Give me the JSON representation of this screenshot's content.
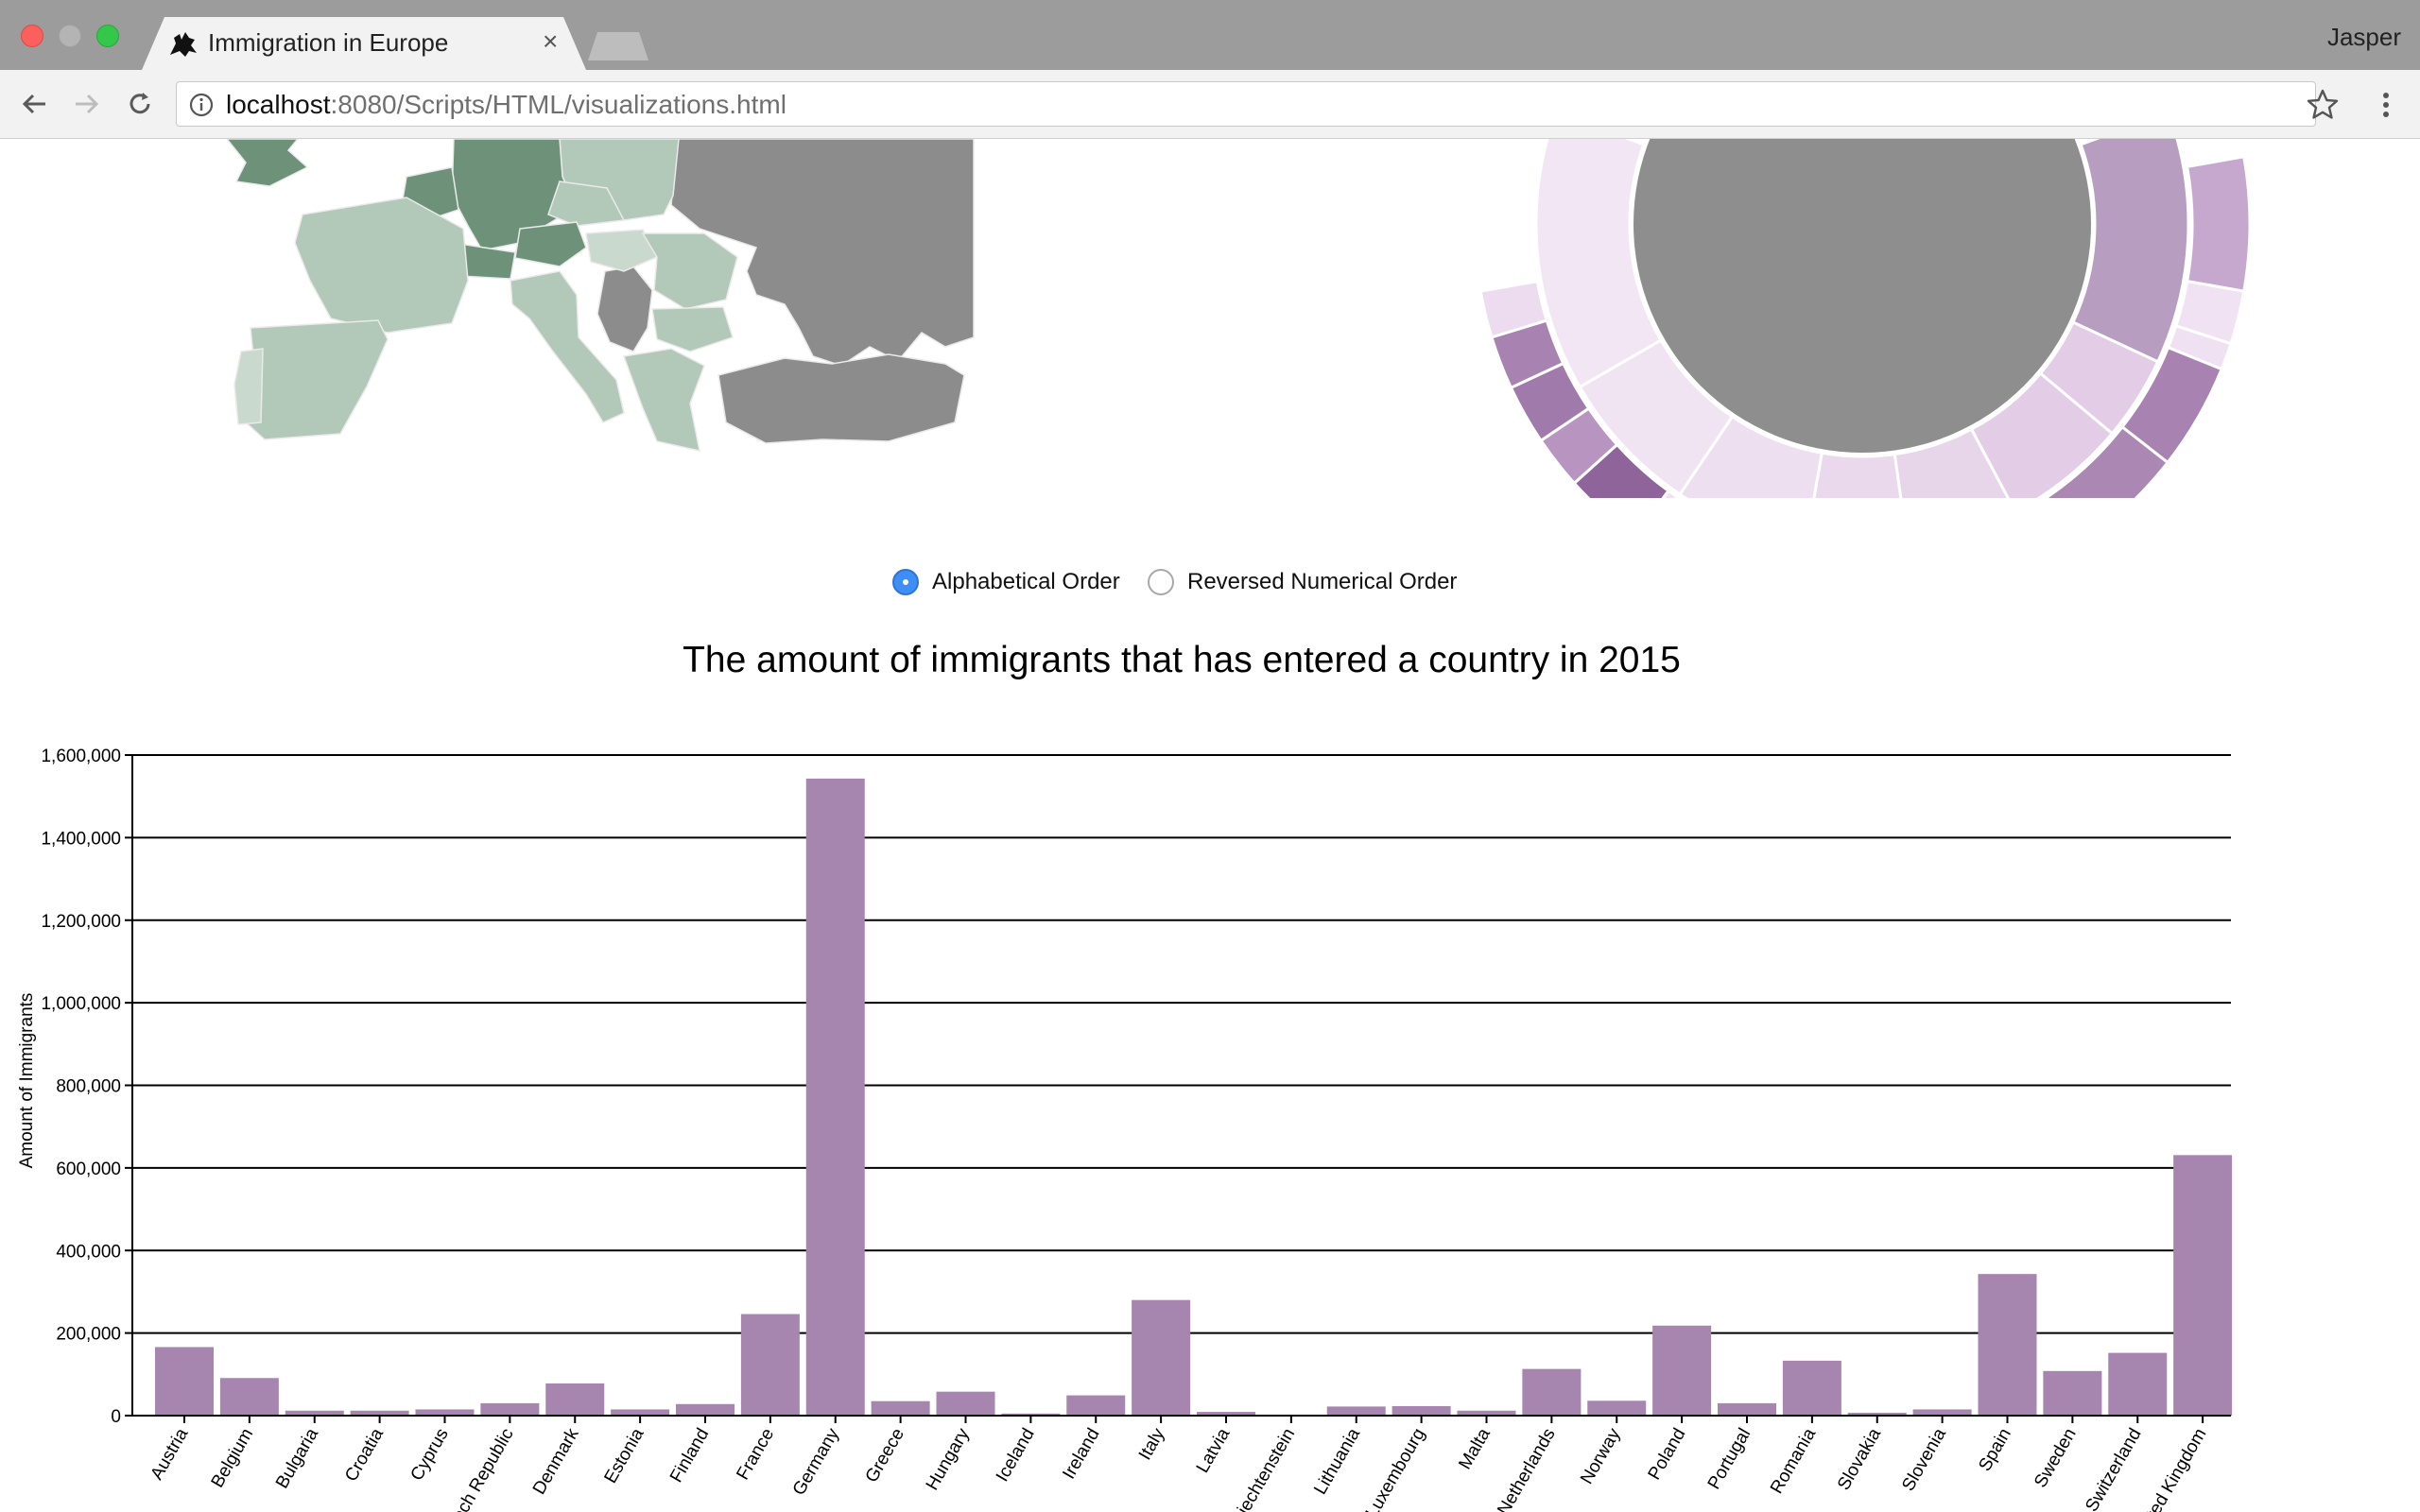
{
  "browser": {
    "tab_title": "Immigration in Europe",
    "profile_name": "Jasper",
    "url_host": "localhost",
    "url_rest": ":8080/Scripts/HTML/visualizations.html"
  },
  "sort_options": {
    "alphabetical": "Alphabetical Order",
    "reversed": "Reversed Numerical Order",
    "selected": "Alphabetical Order"
  },
  "colors": {
    "bar": "#a685ae",
    "map_light": "#b2c8b8",
    "map_dark": "#6d9279",
    "map_nodata": "#8c8c8c"
  },
  "chart_data": {
    "type": "bar",
    "title": "The amount of immigrants that has entered a country in 2015",
    "ylabel": "Amount of Immigrants",
    "xlabel": "",
    "ylim": [
      0,
      1600000
    ],
    "yticks": [
      0,
      200000,
      400000,
      600000,
      800000,
      1000000,
      1200000,
      1400000,
      1600000
    ],
    "ytick_labels": [
      "0",
      "200,000",
      "400,000",
      "600,000",
      "800,000",
      "1,000,000",
      "1,200,000",
      "1,400,000",
      "1,600,000"
    ],
    "grid": true,
    "categories": [
      "Austria",
      "Belgium",
      "Bulgaria",
      "Croatia",
      "Cyprus",
      "Czech Republic",
      "Denmark",
      "Estonia",
      "Finland",
      "France",
      "Germany",
      "Greece",
      "Hungary",
      "Iceland",
      "Ireland",
      "Italy",
      "Latvia",
      "Liechtenstein",
      "Lithuania",
      "Luxembourg",
      "Malta",
      "Netherlands",
      "Norway",
      "Poland",
      "Portugal",
      "Romania",
      "Slovakia",
      "Slovenia",
      "Spain",
      "Sweden",
      "Switzerland",
      "United Kingdom"
    ],
    "values": [
      166000,
      91000,
      12000,
      12000,
      15000,
      30000,
      78000,
      15000,
      28000,
      246000,
      1543000,
      35000,
      58000,
      5000,
      49000,
      280000,
      9000,
      0,
      22000,
      23000,
      12000,
      113000,
      36000,
      218000,
      30000,
      133000,
      7000,
      15000,
      343000,
      108000,
      152000,
      631000
    ]
  }
}
